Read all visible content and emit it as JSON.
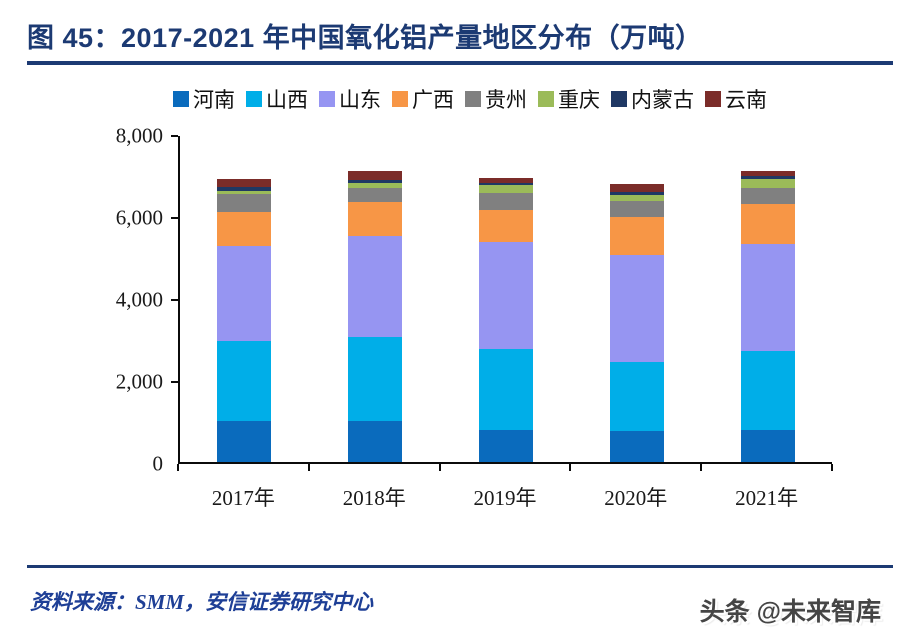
{
  "header": {
    "title": "图 45：2017-2021 年中国氧化铝产量地区分布（万吨）"
  },
  "footer": {
    "source": "资料来源：SMM，安信证券研究中心",
    "watermark": "头条 @未来智库"
  },
  "colors": {
    "title_navy": "#1c3a73",
    "axis_black": "#0b0b0b",
    "source_blue": "#1e3f96"
  },
  "chart_data": {
    "type": "bar",
    "stacked": true,
    "title": "2017-2021 年中国氧化铝产量地区分布（万吨）",
    "xlabel": "",
    "ylabel": "",
    "grid": false,
    "legend_position": "top",
    "ylim": [
      0,
      8000
    ],
    "yticks": [
      {
        "value": 0,
        "label": "0"
      },
      {
        "value": 2000,
        "label": "2,000"
      },
      {
        "value": 4000,
        "label": "4,000"
      },
      {
        "value": 6000,
        "label": "6,000"
      },
      {
        "value": 8000,
        "label": "8,000"
      }
    ],
    "categories": [
      "2017年",
      "2018年",
      "2019年",
      "2020年",
      "2021年"
    ],
    "series": [
      {
        "name": "河南",
        "color": "#0a6bbd",
        "values": [
          1000,
          1000,
          780,
          760,
          780
        ]
      },
      {
        "name": "山西",
        "color": "#00aee8",
        "values": [
          1950,
          2050,
          1980,
          1680,
          1930
        ]
      },
      {
        "name": "山东",
        "color": "#9695f2",
        "values": [
          2330,
          2460,
          2610,
          2610,
          2610
        ]
      },
      {
        "name": "广西",
        "color": "#f79646",
        "values": [
          830,
          830,
          780,
          930,
          970
        ]
      },
      {
        "name": "贵州",
        "color": "#808080",
        "values": [
          420,
          340,
          410,
          390,
          390
        ]
      },
      {
        "name": "重庆",
        "color": "#9bbb59",
        "values": [
          80,
          120,
          200,
          140,
          220
        ]
      },
      {
        "name": "内蒙古",
        "color": "#1f3864",
        "values": [
          110,
          80,
          50,
          80,
          80
        ]
      },
      {
        "name": "云南",
        "color": "#7b2c29",
        "values": [
          180,
          220,
          120,
          190,
          120
        ]
      }
    ]
  }
}
